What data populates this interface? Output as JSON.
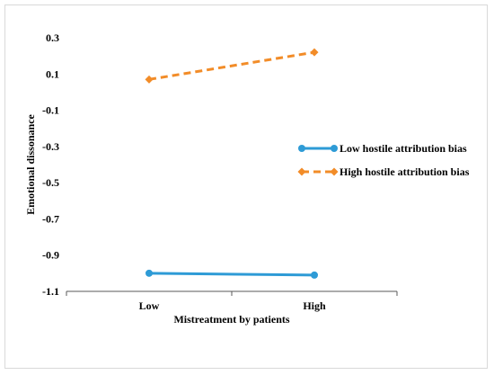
{
  "chart_data": {
    "type": "line",
    "title": "",
    "xlabel": "Mistreatment by patients",
    "ylabel": "Emotional dissonance",
    "categories": [
      "Low",
      "High"
    ],
    "ylim": [
      -1.1,
      0.3
    ],
    "yticks": [
      -1.1,
      -0.9,
      -0.7,
      -0.5,
      -0.3,
      -0.1,
      0.1,
      0.3
    ],
    "ytick_labels": [
      "-1.1",
      "-0.9",
      "-0.7",
      "-0.5",
      "-0.3",
      "-0.1",
      "0.1",
      "0.3"
    ],
    "grid": false,
    "legend_position": "right",
    "series": [
      {
        "name": "Low hostile attribution bias",
        "values": [
          -1.0,
          -1.01
        ],
        "color": "#2E9BD6",
        "line_style": "solid",
        "marker": "circle"
      },
      {
        "name": "High hostile attribution bias",
        "values": [
          0.07,
          0.22
        ],
        "color": "#F28C28",
        "line_style": "dashed",
        "marker": "diamond"
      }
    ]
  }
}
